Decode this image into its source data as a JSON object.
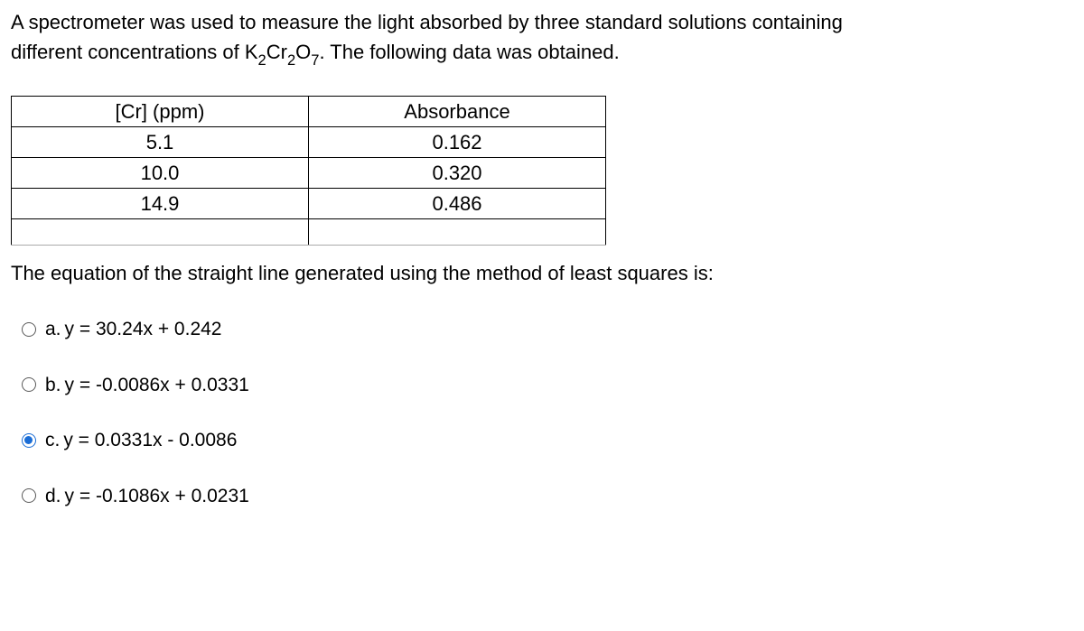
{
  "question": {
    "line1": "A spectrometer was used to measure the light absorbed by three standard solutions containing",
    "line2_pre": "different concentrations of K",
    "line2_sub1": "2",
    "line2_mid1": "Cr",
    "line2_sub2": "2",
    "line2_mid2": "O",
    "line2_sub3": "7",
    "line2_post": ". The following data was obtained."
  },
  "table": {
    "header": {
      "col1": "[Cr] (ppm)",
      "col2": "Absorbance"
    },
    "rows": [
      {
        "c1": "5.1",
        "c2": "0.162"
      },
      {
        "c1": "10.0",
        "c2": "0.320"
      },
      {
        "c1": "14.9",
        "c2": "0.486"
      }
    ]
  },
  "post_question": "The equation of the straight line generated using the method of least squares is:",
  "options": [
    {
      "letter": "a.",
      "text": "y = 30.24x + 0.242",
      "selected": false
    },
    {
      "letter": "b.",
      "text": "y = -0.0086x + 0.0331",
      "selected": false
    },
    {
      "letter": "c.",
      "text": "y = 0.0331x - 0.0086",
      "selected": true
    },
    {
      "letter": "d.",
      "text": "y = -0.1086x + 0.0231",
      "selected": false
    }
  ]
}
